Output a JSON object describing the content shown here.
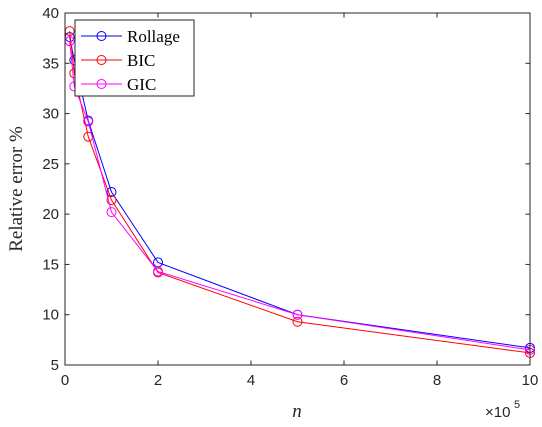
{
  "chart_data": {
    "type": "line",
    "xlabel": "n",
    "ylabel": "Relative error %",
    "x_multiplier": {
      "base": "×10",
      "exponent": "5"
    },
    "xlim": [
      0,
      10
    ],
    "ylim": [
      5,
      40
    ],
    "x_ticks": [
      "0",
      "2",
      "4",
      "6",
      "8",
      "10"
    ],
    "y_ticks": [
      "5",
      "10",
      "15",
      "20",
      "25",
      "30",
      "35",
      "40"
    ],
    "x": [
      0.1,
      0.2,
      0.5,
      1,
      2,
      5,
      10
    ],
    "legend_position": "top-left",
    "grid": false,
    "series": [
      {
        "name": "Rollage",
        "color": "#0000ff",
        "marker": "circle",
        "values": [
          37.6,
          35.3,
          29.3,
          22.2,
          15.2,
          10.0,
          6.7
        ]
      },
      {
        "name": "BIC",
        "color": "#ff0000",
        "marker": "circle",
        "values": [
          38.2,
          34.0,
          27.7,
          21.4,
          14.2,
          9.3,
          6.2
        ]
      },
      {
        "name": "GIC",
        "color": "#ff00ff",
        "marker": "circle",
        "values": [
          37.2,
          32.7,
          29.2,
          20.2,
          14.3,
          10.0,
          6.5
        ]
      }
    ]
  }
}
